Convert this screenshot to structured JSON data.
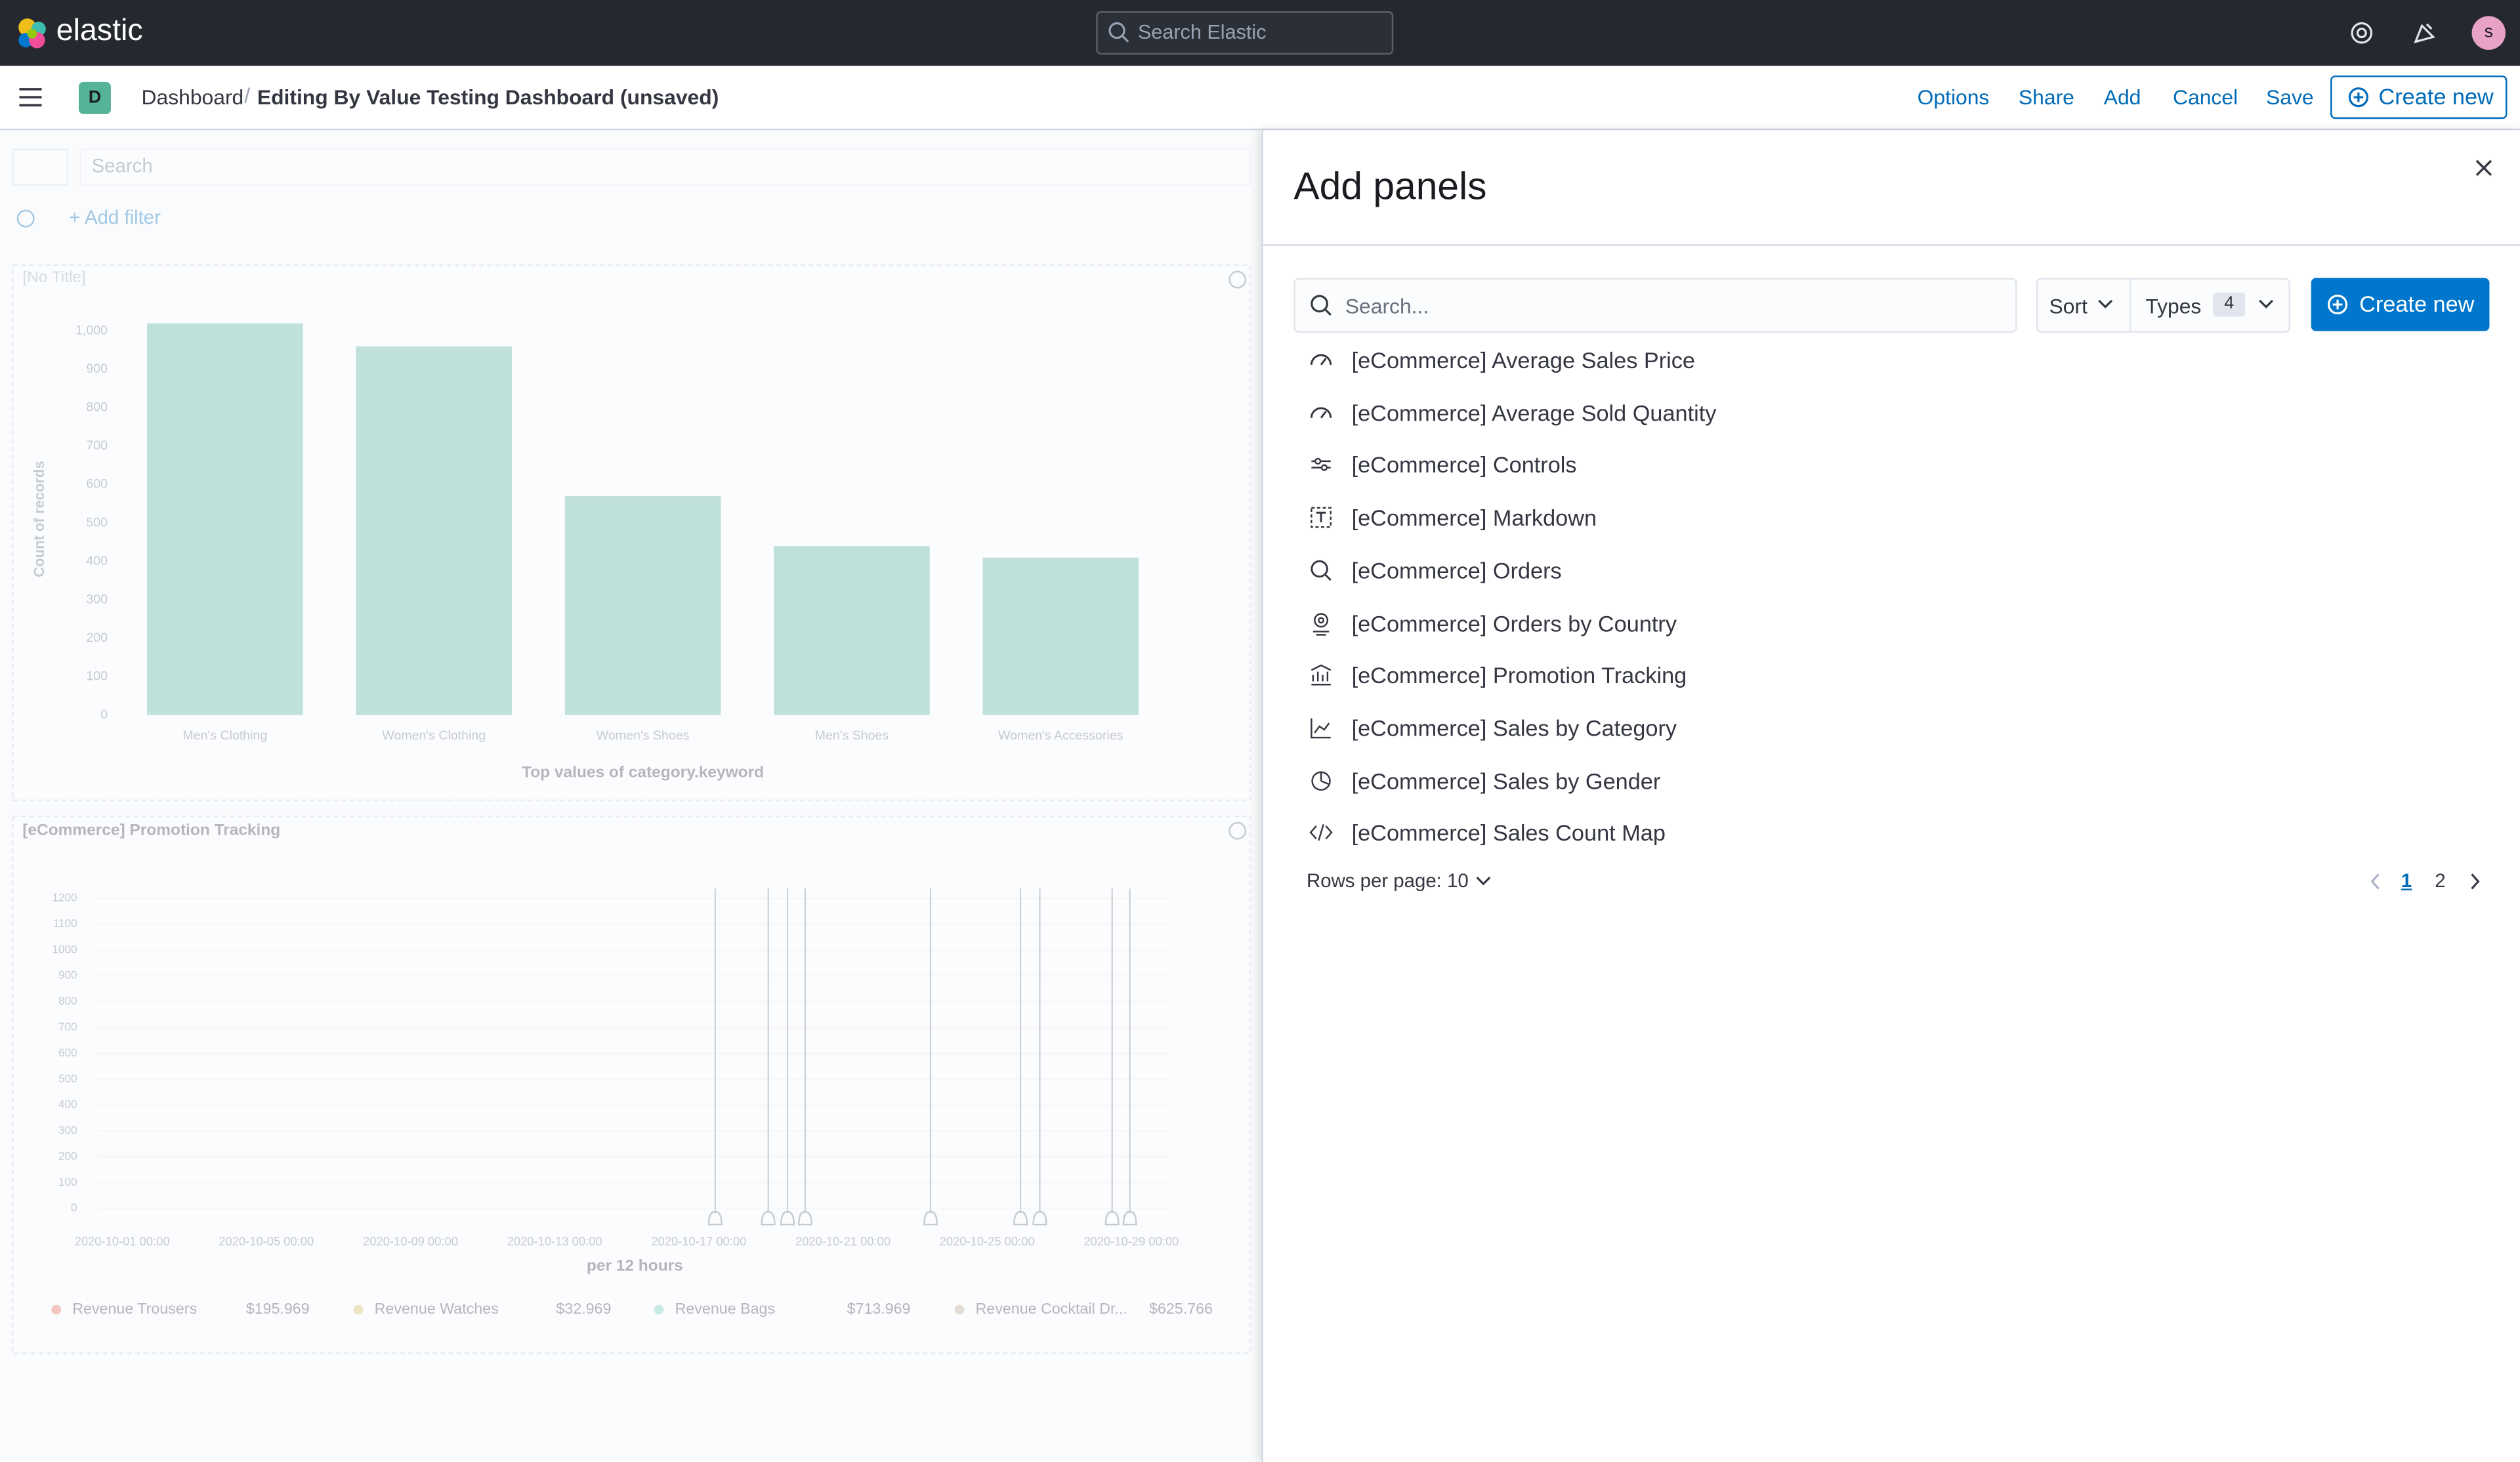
{
  "header": {
    "logo": "elastic",
    "search_placeholder": "Search Elastic",
    "avatar": "s"
  },
  "nav": {
    "space": "D",
    "breadcrumbs": [
      "Dashboard",
      "Editing By Value Testing Dashboard (unsaved)"
    ],
    "actions": [
      "Options",
      "Share",
      "Add",
      "Cancel",
      "Save"
    ],
    "create_button": "Create new"
  },
  "dashboard": {
    "query_placeholder": "Search",
    "add_filter": "+ Add filter",
    "bar_panel": {
      "type": "bar",
      "title": "[No Title]",
      "y_label": "Count of records",
      "x_label": "Top values of category.keyword",
      "categories": [
        "Men's Clothing",
        "Women's Clothing",
        "Women's Shoes",
        "Men's Shoes",
        "Women's Accessories"
      ],
      "values": [
        1020,
        960,
        570,
        440,
        410
      ],
      "ylim": [
        0,
        1040
      ],
      "yticks": [
        0,
        100,
        200,
        300,
        400,
        500,
        600,
        700,
        800,
        900,
        {
          "value": 1000,
          "label": "1,000"
        }
      ],
      "color": "#54b399"
    },
    "promotion_panel": {
      "title": "[eCommerce] Promotion Tracking",
      "ylim": [
        0,
        1250
      ],
      "yticks": [
        0,
        100,
        200,
        300,
        400,
        500,
        600,
        700,
        800,
        900,
        1000,
        1100,
        1200
      ],
      "x_tick_labels": [
        "2020-10-01 00:00",
        "2020-10-05 00:00",
        "2020-10-09 00:00",
        "2020-10-13 00:00",
        "2020-10-17 00:00",
        "2020-10-21 00:00",
        "2020-10-25 00:00",
        "2020-10-29 00:00"
      ],
      "x_label": "per 12 hours",
      "legend": [
        {
          "name": "Revenue Trousers",
          "value": "$195.969",
          "color": "#e7664c"
        },
        {
          "name": "Revenue Watches",
          "value": "$32.969",
          "color": "#d6bf57"
        },
        {
          "name": "Revenue Bags",
          "value": "$713.969",
          "color": "#6dccb1"
        },
        {
          "name": "Revenue Cocktail Dr...",
          "value": "$625.766",
          "color": "#b9a888"
        }
      ]
    }
  },
  "flyout": {
    "title": "Add panels",
    "search_placeholder": "Search...",
    "sort": "Sort",
    "types": "Types",
    "types_count": "4",
    "create_button": "Create new",
    "items": [
      "[eCommerce] Average Sales Price",
      "[eCommerce] Average Sold Quantity",
      "[eCommerce] Controls",
      "[eCommerce] Markdown",
      "[eCommerce] Orders",
      "[eCommerce] Orders by Country",
      "[eCommerce] Promotion Tracking",
      "[eCommerce] Sales by Category",
      "[eCommerce] Sales by Gender",
      "[eCommerce] Sales Count Map"
    ],
    "rows_per_page": "Rows per page: 10",
    "pages": [
      "1",
      "2"
    ]
  }
}
